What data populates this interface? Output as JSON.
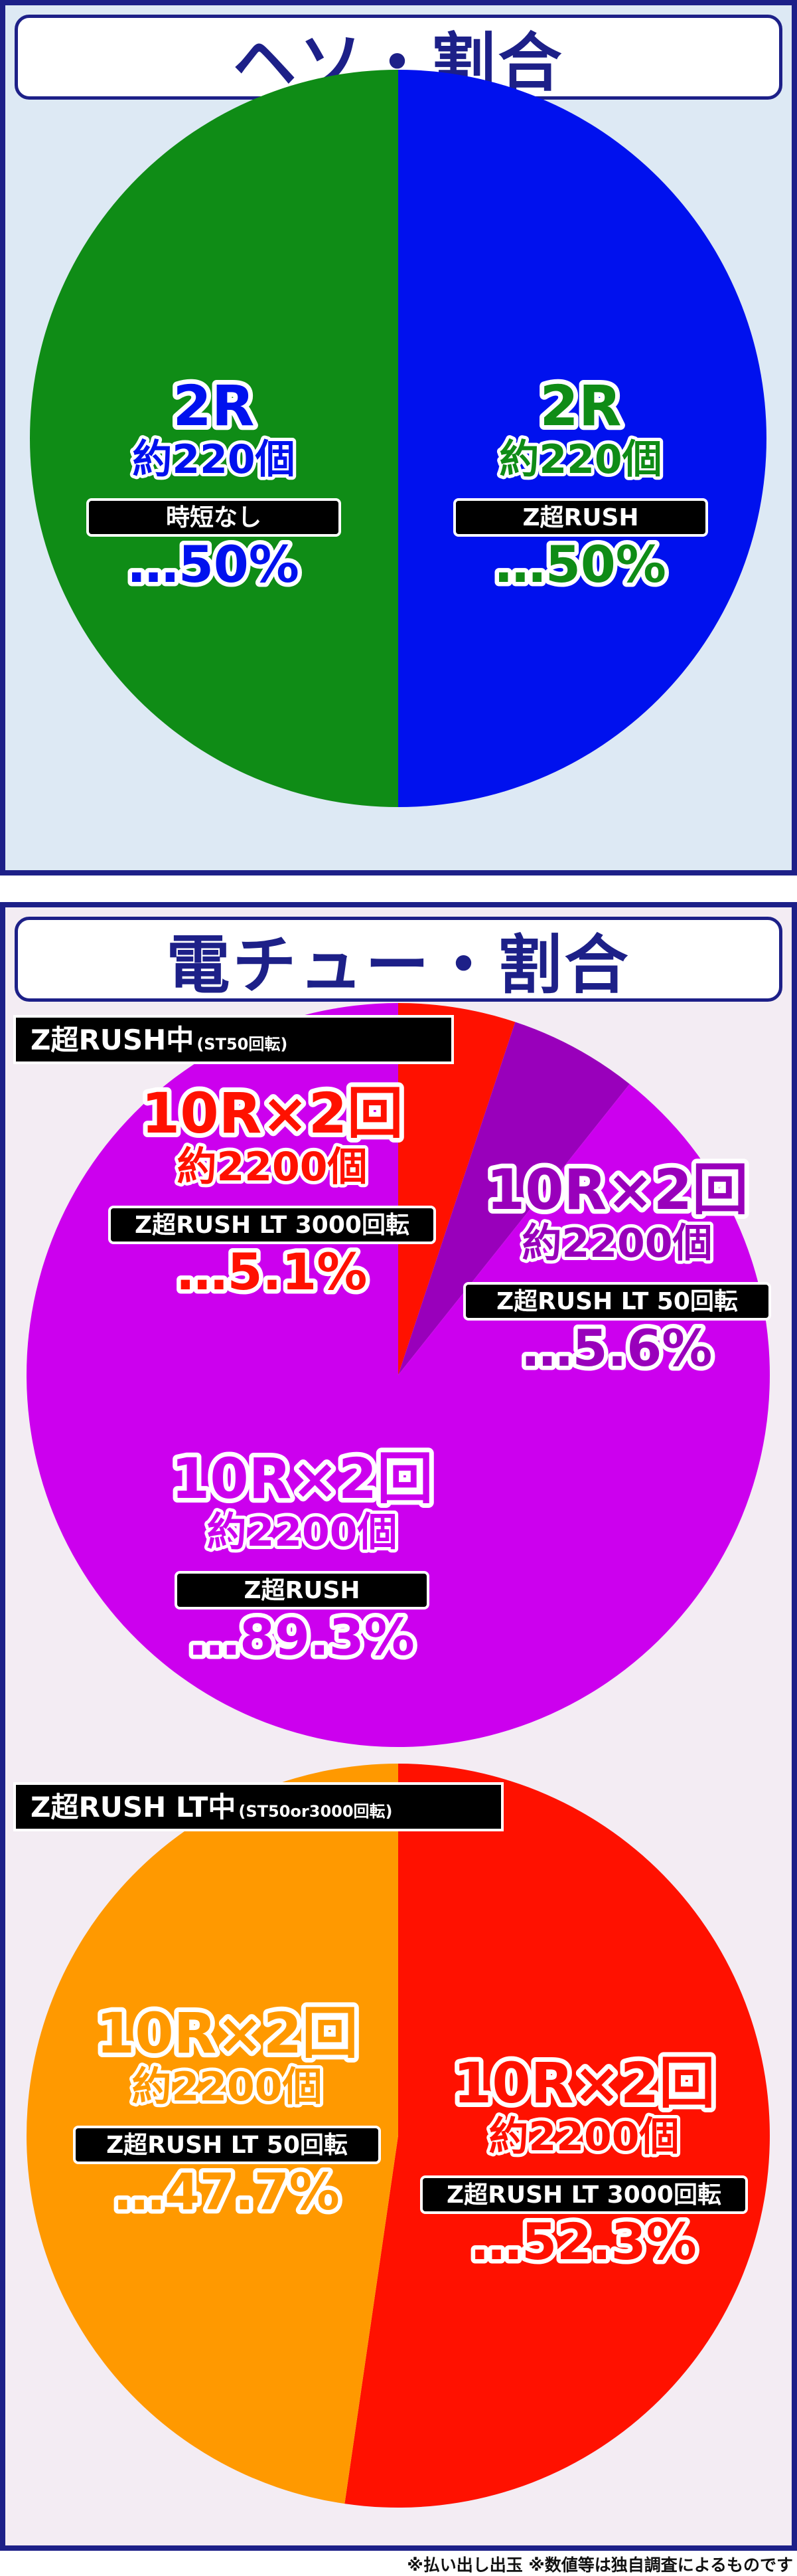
{
  "panels": {
    "heso": {
      "title": "ヘソ・割合"
    },
    "denchu": {
      "title": "電チュー・割合"
    }
  },
  "footnote": "※払い出し出玉 ※数値等は独自調査によるものです",
  "colors": {
    "frame": "#1d2088",
    "blue": "#0011ee",
    "green": "#0f8c16",
    "red": "#ff1100",
    "purple": "#cc00ee",
    "dark_purple": "#9900bb",
    "orange": "#ff9900"
  },
  "chart_data": [
    {
      "type": "pie",
      "title": "",
      "slices": [
        {
          "rounds": "2R",
          "balls": "約220個",
          "mode": "時短なし",
          "pct_label": "…50%",
          "value": 50,
          "color": "#0011ee",
          "text_color": "#0011ee"
        },
        {
          "rounds": "2R",
          "balls": "約220個",
          "mode": "Z超RUSH",
          "pct_label": "…50%",
          "value": 50,
          "color": "#0f8c16",
          "text_color": "#0f8c16"
        }
      ]
    },
    {
      "type": "pie",
      "title": "Z超RUSH中",
      "title_note": "(ST50回転)",
      "slices": [
        {
          "rounds": "10R×2回",
          "balls": "約2200個",
          "mode": "Z超RUSH LT 3000回転",
          "pct_label": "…5.1%",
          "value": 5.1,
          "color": "#ff1100",
          "text_color": "#ff1100"
        },
        {
          "rounds": "10R×2回",
          "balls": "約2200個",
          "mode": "Z超RUSH LT 50回転",
          "pct_label": "…5.6%",
          "value": 5.6,
          "color": "#9900bb",
          "text_color": "#9900bb"
        },
        {
          "rounds": "10R×2回",
          "balls": "約2200個",
          "mode": "Z超RUSH",
          "pct_label": "…89.3%",
          "value": 89.3,
          "color": "#cc00ee",
          "text_color": "#cc00ee"
        }
      ]
    },
    {
      "type": "pie",
      "title": "Z超RUSH LT中",
      "title_note": "(ST50or3000回転)",
      "slices": [
        {
          "rounds": "10R×2回",
          "balls": "約2200個",
          "mode": "Z超RUSH LT 3000回転",
          "pct_label": "…52.3%",
          "value": 52.3,
          "color": "#ff1100",
          "text_color": "#ff1100"
        },
        {
          "rounds": "10R×2回",
          "balls": "約2200個",
          "mode": "Z超RUSH LT 50回転",
          "pct_label": "…47.7%",
          "value": 47.7,
          "color": "#ff9900",
          "text_color": "#ff9900"
        }
      ]
    }
  ]
}
